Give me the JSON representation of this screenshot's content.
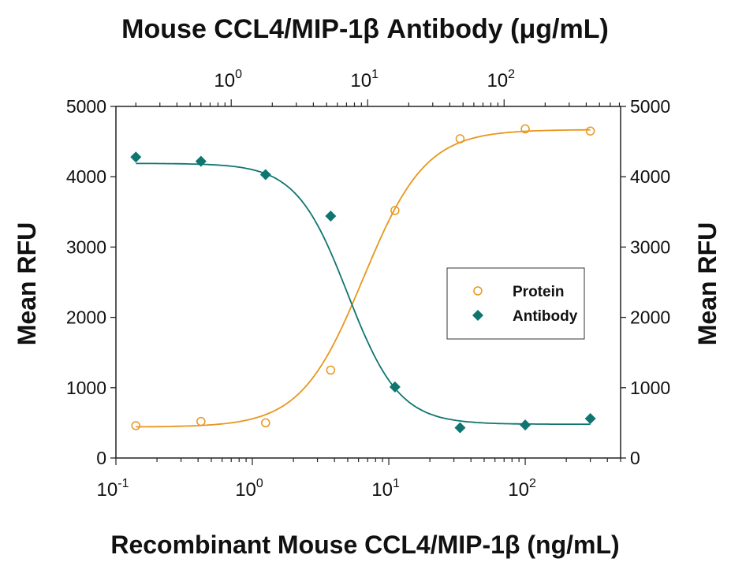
{
  "chart_data": {
    "type": "scatter",
    "title": "Mouse CCL4/MIP-1β Antibody (μg/mL)",
    "xlabel": "Recombinant Mouse CCL4/MIP-1β (ng/mL)",
    "ylabel": "Mean RFU",
    "ylabel_right": "Mean RFU",
    "x_scale": "log",
    "xlim": [
      0.1,
      500
    ],
    "ylim": [
      0,
      5000
    ],
    "x_ticks": [
      {
        "base": "10",
        "exp": "-1",
        "value": 0.1
      },
      {
        "base": "10",
        "exp": "0",
        "value": 1
      },
      {
        "base": "10",
        "exp": "1",
        "value": 10
      },
      {
        "base": "10",
        "exp": "2",
        "value": 100
      }
    ],
    "top_x_ticks": [
      {
        "base": "10",
        "exp": "0",
        "value": 0.7
      },
      {
        "base": "10",
        "exp": "1",
        "value": 7
      },
      {
        "base": "10",
        "exp": "2",
        "value": 70
      }
    ],
    "y_ticks": [
      "0",
      "1000",
      "2000",
      "3000",
      "4000",
      "5000"
    ],
    "y_tick_values": [
      0,
      1000,
      2000,
      3000,
      4000,
      5000
    ],
    "legend_position": "center-right",
    "series": [
      {
        "name": "Protein",
        "color": "#e8961e",
        "marker": "open-circle",
        "x": [
          0.14,
          0.42,
          1.25,
          3.75,
          11.1,
          33.3,
          100,
          300
        ],
        "y": [
          460,
          520,
          500,
          1250,
          3520,
          4540,
          4680,
          4650
        ],
        "fit": {
          "bottom": 440,
          "top": 4670,
          "ec50": 6.5,
          "hill": 1.9
        }
      },
      {
        "name": "Antibody",
        "color": "#0e7570",
        "marker": "filled-diamond",
        "x": [
          0.14,
          0.42,
          1.25,
          3.75,
          11.1,
          33.3,
          100,
          300
        ],
        "y": [
          4280,
          4220,
          4030,
          3440,
          1010,
          430,
          470,
          560
        ],
        "fit": {
          "bottom": 480,
          "top": 4190,
          "ec50": 5.0,
          "hill": 2.3
        }
      }
    ]
  }
}
